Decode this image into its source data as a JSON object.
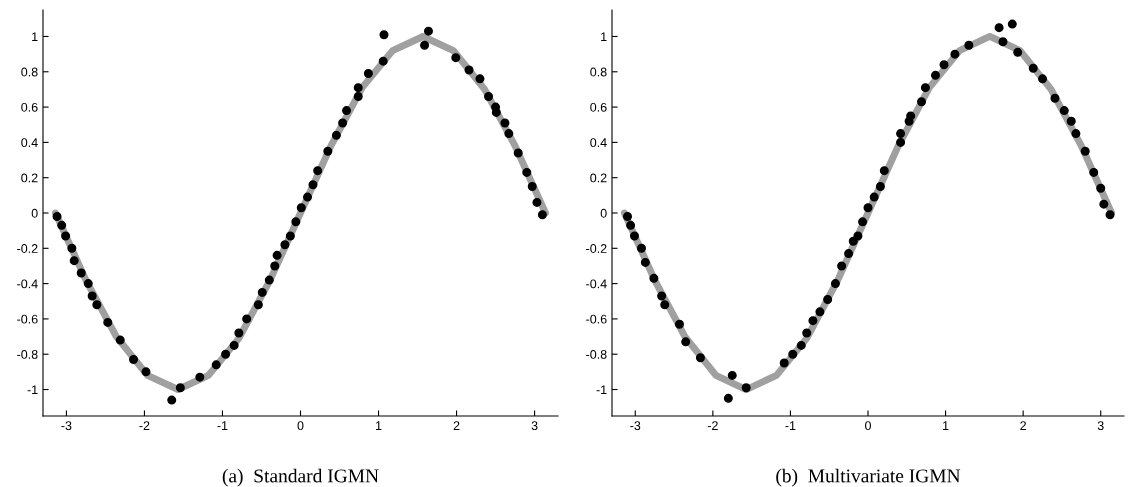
{
  "chart_data": [
    {
      "type": "scatter",
      "annotations": [
        "(a)  Standard IGMN"
      ],
      "xlim": [
        -3.3,
        3.3
      ],
      "ylim": [
        -1.15,
        1.15
      ],
      "xticks": [
        -3,
        -2,
        -1,
        0,
        1,
        2,
        3
      ],
      "yticks": [
        -1,
        -0.8,
        -0.6,
        -0.4,
        -0.2,
        0,
        0.2,
        0.4,
        0.6,
        0.8,
        1
      ],
      "grid": false,
      "series": [
        {
          "type": "line",
          "marker": "none",
          "color": "#a0a0a0",
          "x": [
            -3.14,
            -2.75,
            -2.36,
            -1.96,
            -1.57,
            -1.18,
            -0.79,
            -0.39,
            0,
            0.39,
            0.79,
            1.18,
            1.57,
            1.96,
            2.36,
            2.75,
            3.14
          ],
          "values": [
            0,
            -0.38,
            -0.7,
            -0.92,
            -1,
            -0.92,
            -0.71,
            -0.38,
            0,
            0.38,
            0.71,
            0.92,
            1,
            0.92,
            0.7,
            0.38,
            0
          ]
        },
        {
          "marker": "circle",
          "color": "#000000",
          "x": [
            -3.12,
            -3.06,
            -3.01,
            -2.93,
            -2.9,
            -2.81,
            -2.72,
            -2.67,
            -2.61,
            -2.47,
            -2.31,
            -2.14,
            -1.98,
            -1.54,
            -1.65,
            -1.29,
            -1.08,
            -0.96,
            -0.85,
            -0.79,
            -0.69,
            -0.54,
            -0.49,
            -0.4,
            -0.33,
            -0.3,
            -0.2,
            -0.13,
            -0.06,
            0.01,
            0.09,
            0.16,
            0.22,
            0.35,
            0.46,
            0.54,
            0.59,
            0.74,
            0.74,
            0.87,
            1.06,
            1.07,
            1.64,
            1.59,
            1.99,
            2.16,
            2.3,
            2.41,
            2.5,
            2.51,
            2.62,
            2.67,
            2.79,
            2.9,
            2.97,
            3.03,
            3.1
          ],
          "values": [
            -0.02,
            -0.07,
            -0.13,
            -0.2,
            -0.27,
            -0.34,
            -0.4,
            -0.47,
            -0.52,
            -0.62,
            -0.72,
            -0.83,
            -0.9,
            -0.99,
            -1.06,
            -0.93,
            -0.86,
            -0.8,
            -0.75,
            -0.68,
            -0.6,
            -0.52,
            -0.45,
            -0.38,
            -0.3,
            -0.24,
            -0.18,
            -0.13,
            -0.05,
            0.03,
            0.09,
            0.16,
            0.24,
            0.35,
            0.44,
            0.51,
            0.58,
            0.66,
            0.71,
            0.79,
            0.86,
            1.01,
            1.03,
            0.95,
            0.88,
            0.81,
            0.76,
            0.66,
            0.6,
            0.57,
            0.51,
            0.45,
            0.34,
            0.23,
            0.15,
            0.06,
            -0.01
          ]
        }
      ]
    },
    {
      "type": "scatter",
      "annotations": [
        "(b)  Multivariate IGMN"
      ],
      "xlim": [
        -3.3,
        3.3
      ],
      "ylim": [
        -1.15,
        1.15
      ],
      "xticks": [
        -3,
        -2,
        -1,
        0,
        1,
        2,
        3
      ],
      "yticks": [
        -1,
        -0.8,
        -0.6,
        -0.4,
        -0.2,
        0,
        0.2,
        0.4,
        0.6,
        0.8,
        1
      ],
      "grid": false,
      "series": [
        {
          "type": "line",
          "marker": "none",
          "color": "#a0a0a0",
          "x": [
            -3.14,
            -2.75,
            -2.36,
            -1.96,
            -1.57,
            -1.18,
            -0.79,
            -0.39,
            0,
            0.39,
            0.79,
            1.18,
            1.57,
            1.96,
            2.36,
            2.75,
            3.14
          ],
          "values": [
            0,
            -0.38,
            -0.7,
            -0.92,
            -1,
            -0.92,
            -0.71,
            -0.38,
            0,
            0.38,
            0.71,
            0.92,
            1,
            0.92,
            0.7,
            0.38,
            0
          ]
        },
        {
          "marker": "circle",
          "color": "#000000",
          "x": [
            -3.1,
            -3.06,
            -3.01,
            -2.92,
            -2.87,
            -2.76,
            -2.66,
            -2.62,
            -2.43,
            -2.35,
            -2.16,
            -1.75,
            -1.57,
            -1.8,
            -1.08,
            -0.97,
            -0.86,
            -0.79,
            -0.71,
            -0.62,
            -0.52,
            -0.42,
            -0.34,
            -0.25,
            -0.19,
            -0.13,
            -0.07,
            0,
            0.08,
            0.16,
            0.21,
            0.42,
            0.42,
            0.53,
            0.55,
            0.69,
            0.74,
            0.87,
            0.98,
            1.12,
            1.3,
            1.69,
            1.86,
            1.74,
            1.93,
            2.13,
            2.25,
            2.41,
            2.53,
            2.62,
            2.68,
            2.8,
            2.91,
            3,
            3.04,
            3.12
          ],
          "values": [
            -0.02,
            -0.07,
            -0.13,
            -0.2,
            -0.28,
            -0.37,
            -0.47,
            -0.52,
            -0.63,
            -0.73,
            -0.82,
            -0.92,
            -0.99,
            -1.05,
            -0.85,
            -0.8,
            -0.75,
            -0.68,
            -0.61,
            -0.56,
            -0.49,
            -0.4,
            -0.3,
            -0.23,
            -0.16,
            -0.13,
            -0.05,
            0.03,
            0.09,
            0.15,
            0.24,
            0.4,
            0.45,
            0.52,
            0.55,
            0.63,
            0.71,
            0.78,
            0.84,
            0.9,
            0.95,
            1.05,
            1.07,
            0.97,
            0.91,
            0.82,
            0.76,
            0.65,
            0.58,
            0.52,
            0.45,
            0.35,
            0.23,
            0.14,
            0.05,
            -0.01
          ]
        }
      ]
    }
  ]
}
